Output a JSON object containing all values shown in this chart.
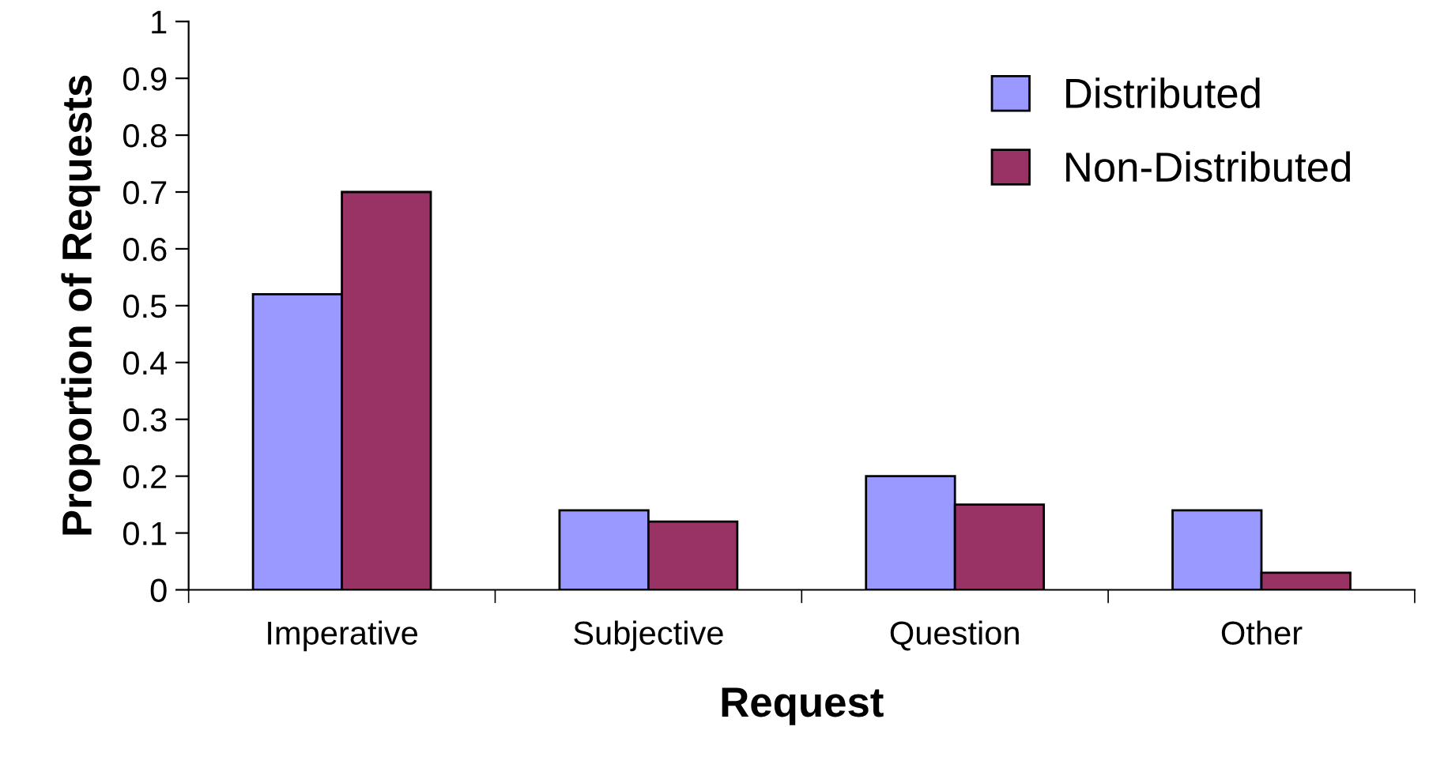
{
  "chart_data": {
    "type": "bar",
    "xlabel": "Request",
    "ylabel": "Proportion of Requests",
    "categories": [
      "Imperative",
      "Subjective",
      "Question",
      "Other"
    ],
    "series": [
      {
        "name": "Distributed",
        "color": "#9999ff",
        "values": [
          0.52,
          0.14,
          0.2,
          0.14
        ]
      },
      {
        "name": "Non-Distributed",
        "color": "#993366",
        "values": [
          0.7,
          0.12,
          0.15,
          0.03
        ]
      }
    ],
    "ylim": [
      0,
      1
    ],
    "yticks": [
      0,
      0.1,
      0.2,
      0.3,
      0.4,
      0.5,
      0.6,
      0.7,
      0.8,
      0.9,
      1
    ],
    "grid": false,
    "legend": "top right"
  }
}
